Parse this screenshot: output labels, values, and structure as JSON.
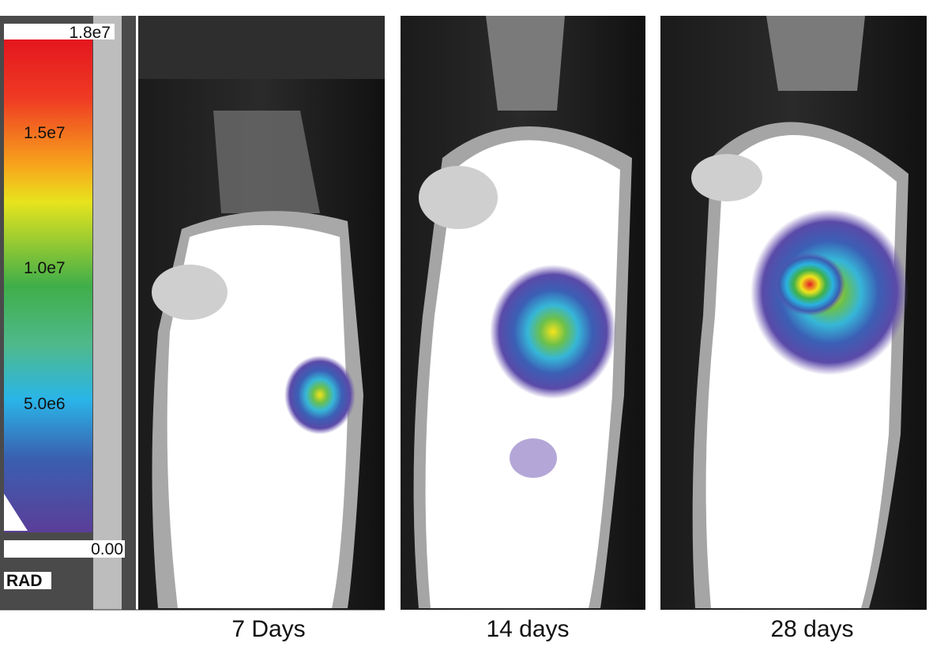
{
  "colorbar": {
    "max_label": "1.8e7",
    "tick_labels": [
      "1.5e7",
      "1.0e7",
      "5.0e6"
    ],
    "min_label": "0.00",
    "unit": "RAD"
  },
  "panels": [
    {
      "label": "7 Days"
    },
    {
      "label": "14 days"
    },
    {
      "label": "28 days"
    }
  ]
}
